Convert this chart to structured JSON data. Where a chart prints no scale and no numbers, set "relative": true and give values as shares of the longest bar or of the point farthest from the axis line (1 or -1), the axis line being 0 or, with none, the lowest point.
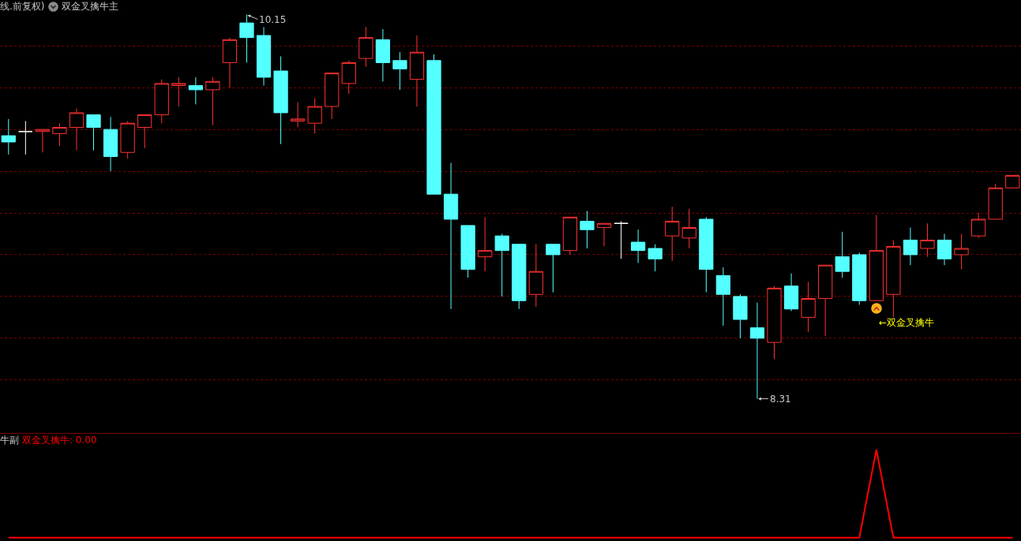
{
  "chart_data": [
    {
      "type": "candlestick",
      "subtitle": "线.前复权)",
      "title": "双金叉擒牛主",
      "categories": [
        null,
        null,
        null,
        null,
        null,
        null,
        null,
        null,
        null,
        null,
        null,
        null,
        null,
        null,
        null,
        null,
        null,
        null,
        null,
        null,
        null,
        null,
        null,
        null,
        null,
        null,
        null,
        null,
        null,
        null,
        null,
        null,
        null,
        null,
        null,
        null,
        null,
        null,
        null,
        null,
        null,
        null,
        null,
        null,
        null,
        null,
        null,
        null,
        null,
        null,
        null,
        null,
        null,
        null,
        null,
        null,
        null,
        null,
        null,
        null
      ],
      "ohlc": [
        [
          9.57,
          9.65,
          9.48,
          9.54
        ],
        [
          9.59,
          9.64,
          9.48,
          9.59
        ],
        [
          9.59,
          9.6,
          9.49,
          9.6
        ],
        [
          9.58,
          9.63,
          9.52,
          9.61
        ],
        [
          9.61,
          9.7,
          9.5,
          9.68
        ],
        [
          9.67,
          9.67,
          9.5,
          9.61
        ],
        [
          9.6,
          9.66,
          9.4,
          9.47
        ],
        [
          9.49,
          9.64,
          9.46,
          9.63
        ],
        [
          9.61,
          9.67,
          9.51,
          9.67
        ],
        [
          9.67,
          9.84,
          9.63,
          9.82
        ],
        [
          9.81,
          9.85,
          9.71,
          9.82
        ],
        [
          9.81,
          9.85,
          9.72,
          9.79
        ],
        [
          9.79,
          9.85,
          9.62,
          9.83
        ],
        [
          9.92,
          10.04,
          9.8,
          10.03
        ],
        [
          10.11,
          10.15,
          9.92,
          10.04
        ],
        [
          10.05,
          10.09,
          9.81,
          9.85
        ],
        [
          9.88,
          9.95,
          9.53,
          9.68
        ],
        [
          9.64,
          9.73,
          9.61,
          9.65
        ],
        [
          9.63,
          9.75,
          9.58,
          9.71
        ],
        [
          9.71,
          9.87,
          9.65,
          9.87
        ],
        [
          9.82,
          9.93,
          9.77,
          9.92
        ],
        [
          9.94,
          10.09,
          9.9,
          10.04
        ],
        [
          10.03,
          10.08,
          9.83,
          9.92
        ],
        [
          9.93,
          9.97,
          9.79,
          9.89
        ],
        [
          9.84,
          10.05,
          9.71,
          9.97
        ],
        [
          9.93,
          9.96,
          9.29,
          9.29
        ],
        [
          9.29,
          9.44,
          8.74,
          9.17
        ],
        [
          9.14,
          9.14,
          8.89,
          8.93
        ],
        [
          8.99,
          9.18,
          8.92,
          9.02
        ],
        [
          9.09,
          9.1,
          8.8,
          9.02
        ],
        [
          9.05,
          9.05,
          8.74,
          8.78
        ],
        [
          8.81,
          9.05,
          8.75,
          8.92
        ],
        [
          9.05,
          9.05,
          8.82,
          9.0
        ],
        [
          9.02,
          9.18,
          9.0,
          9.18
        ],
        [
          9.16,
          9.21,
          9.03,
          9.12
        ],
        [
          9.13,
          9.15,
          9.04,
          9.15
        ],
        [
          9.15,
          9.16,
          8.98,
          9.15
        ],
        [
          9.06,
          9.12,
          8.96,
          9.02
        ],
        [
          9.03,
          9.05,
          8.92,
          8.98
        ],
        [
          9.09,
          9.23,
          8.97,
          9.16
        ],
        [
          9.08,
          9.22,
          9.03,
          9.13
        ],
        [
          9.17,
          9.18,
          8.82,
          8.93
        ],
        [
          8.9,
          8.94,
          8.66,
          8.81
        ],
        [
          8.8,
          8.81,
          8.6,
          8.69
        ],
        [
          8.65,
          8.77,
          8.31,
          8.6
        ],
        [
          8.58,
          8.85,
          8.5,
          8.84
        ],
        [
          8.85,
          8.91,
          8.73,
          8.74
        ],
        [
          8.7,
          8.87,
          8.63,
          8.79
        ],
        [
          8.79,
          8.95,
          8.61,
          8.95
        ],
        [
          8.99,
          9.11,
          8.89,
          8.92
        ],
        [
          9.0,
          9.01,
          8.76,
          8.78
        ],
        [
          8.78,
          9.19,
          8.78,
          9.02
        ],
        [
          8.81,
          9.07,
          8.7,
          9.04
        ],
        [
          9.07,
          9.13,
          8.95,
          9.0
        ],
        [
          9.03,
          9.15,
          8.99,
          9.07
        ],
        [
          9.07,
          9.1,
          8.95,
          8.98
        ],
        [
          9.0,
          9.1,
          8.93,
          9.03
        ],
        [
          9.09,
          9.2,
          9.08,
          9.17
        ],
        [
          9.17,
          9.34,
          9.17,
          9.32
        ],
        [
          9.32,
          9.38,
          9.32,
          9.38
        ]
      ],
      "colors": [
        "#54ffff",
        "#ffffff",
        "#ff3232",
        "#ff3232",
        "#ff3232",
        "#54ffff",
        "#54ffff",
        "#ff3232",
        "#ff3232",
        "#ff3232",
        "#ff3232",
        "#54ffff",
        "#ff3232",
        "#ff3232",
        "#54ffff",
        "#54ffff",
        "#54ffff",
        "#ff3232",
        "#ff3232",
        "#ff3232",
        "#ff3232",
        "#ff3232",
        "#54ffff",
        "#54ffff",
        "#ff3232",
        "#54ffff",
        "#54ffff",
        "#54ffff",
        "#ff3232",
        "#54ffff",
        "#54ffff",
        "#ff3232",
        "#54ffff",
        "#ff3232",
        "#54ffff",
        "#ff3232",
        "#ffffff",
        "#54ffff",
        "#54ffff",
        "#ff3232",
        "#ff3232",
        "#54ffff",
        "#54ffff",
        "#54ffff",
        "#54ffff",
        "#ff3232",
        "#54ffff",
        "#ff3232",
        "#ff3232",
        "#54ffff",
        "#54ffff",
        "#ff3232",
        "#ff3232",
        "#54ffff",
        "#ff3232",
        "#54ffff",
        "#ff3232",
        "#ff3232",
        "#ff3232",
        "#ff3232"
      ],
      "ylim": [
        8.15,
        10.22
      ],
      "yticks": [
        {
          "value": 8.4,
          "label": null
        },
        {
          "value": 8.6,
          "label": null
        },
        {
          "value": 8.8,
          "label": null
        },
        {
          "value": 9.0,
          "label": null
        },
        {
          "value": 9.2,
          "label": null
        },
        {
          "value": 9.4,
          "label": null
        },
        {
          "value": 9.6,
          "label": null
        },
        {
          "value": 9.8,
          "label": null
        },
        {
          "value": 10.0,
          "label": null
        }
      ],
      "grid": "y",
      "annotations": [
        "10.15",
        "8.31",
        "←双金叉擒牛"
      ]
    },
    {
      "type": "line",
      "title": "牛副",
      "relative": true,
      "categories": [
        null,
        null,
        null,
        null,
        null,
        null,
        null,
        null,
        null,
        null,
        null,
        null,
        null,
        null,
        null,
        null,
        null,
        null,
        null,
        null,
        null,
        null,
        null,
        null,
        null,
        null,
        null,
        null,
        null,
        null,
        null,
        null,
        null,
        null,
        null,
        null,
        null,
        null,
        null,
        null,
        null,
        null,
        null,
        null,
        null,
        null,
        null,
        null,
        null,
        null,
        null,
        null,
        null,
        null,
        null,
        null,
        null,
        null,
        null,
        null
      ],
      "series": [
        {
          "color": "#ff0000",
          "values": [
            0,
            0,
            0,
            0,
            0,
            0,
            0,
            0,
            0,
            0,
            0,
            0,
            0,
            0,
            0,
            0,
            0,
            0,
            0,
            0,
            0,
            0,
            0,
            0,
            0,
            0,
            0,
            0,
            0,
            0,
            0,
            0,
            0,
            0,
            0,
            0,
            0,
            0,
            0,
            0,
            0,
            0,
            0,
            0,
            0,
            0,
            0,
            0,
            0,
            0,
            0,
            1,
            0,
            0,
            0,
            0,
            0,
            0,
            0,
            0
          ]
        }
      ],
      "annotations": [
        "双金叉擒牛: 0.00"
      ]
    }
  ]
}
